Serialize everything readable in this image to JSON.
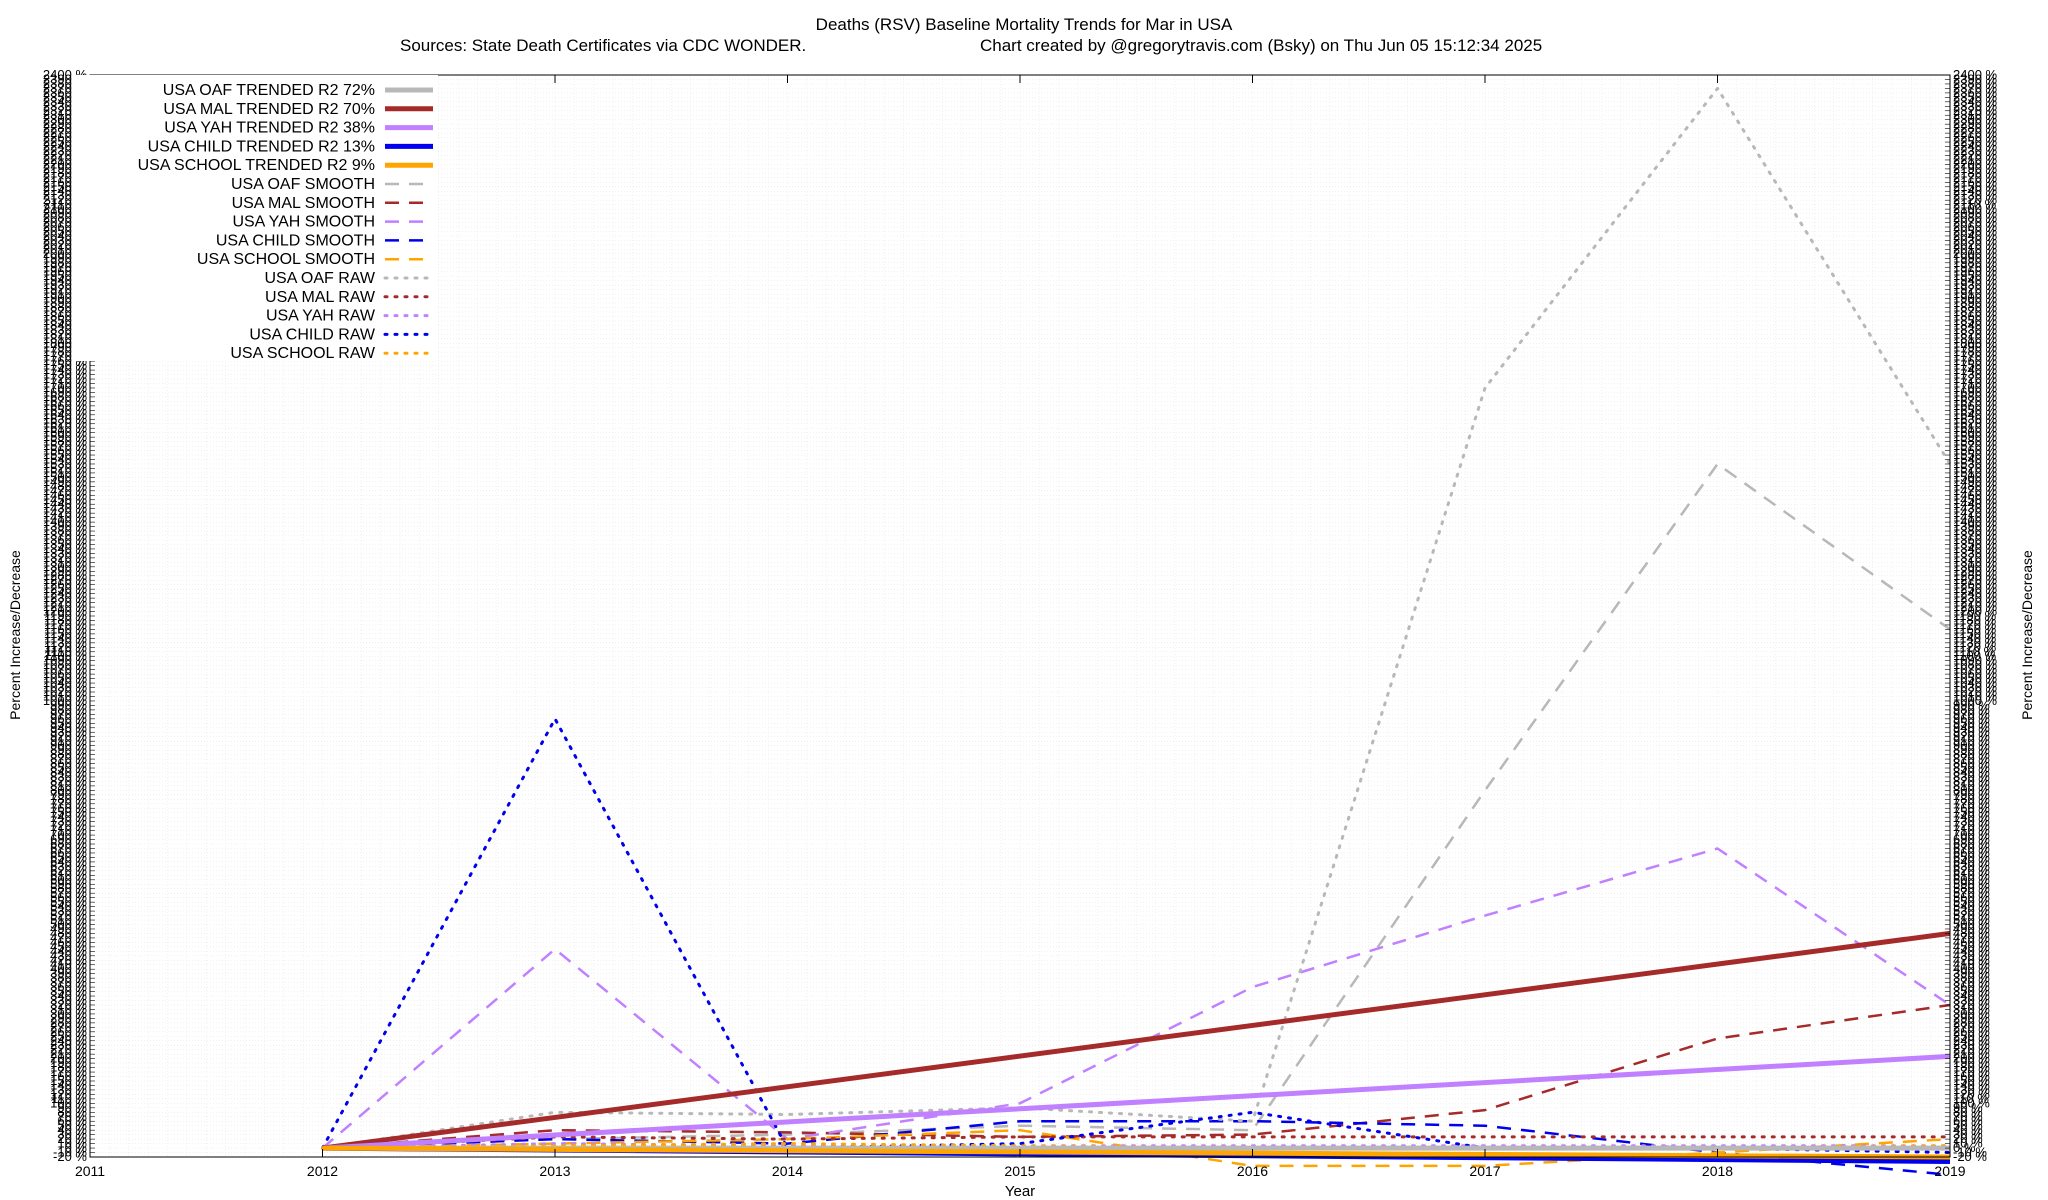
{
  "title_line1": "Deaths (RSV)  Baseline Mortality Trends for Mar in USA",
  "title_line2_left": "Sources: State Death Certificates via CDC WONDER.",
  "title_line2_right": "Chart created by @gregorytravis.com (Bsky) on Thu Jun 05 15:12:34 2025",
  "chart_data": {
    "type": "line",
    "xlabel": "Year",
    "ylabel": "Percent Increase/Decrease",
    "y2label": "Percent Increase/Decrease",
    "xlim": [
      2011,
      2019
    ],
    "ylim": [
      -20,
      2400
    ],
    "x_ticks": [
      "2011",
      "2012",
      "2013",
      "2014",
      "2015",
      "2016",
      "2017",
      "2018",
      "2019"
    ],
    "y_tick_step": 10,
    "y_tick_suffix": " %",
    "grid": true,
    "legend_position": "top-left",
    "series": [
      {
        "name": "USA OAF TRENDED R2  72%",
        "style": "trended",
        "color": "#b8b8b8",
        "x": [
          2012,
          2019
        ],
        "y": [
          0,
          0
        ]
      },
      {
        "name": "USA MAL TRENDED R2  70%",
        "style": "trended",
        "color": "#a52a2a",
        "x": [
          2012,
          2019
        ],
        "y": [
          0,
          480
        ]
      },
      {
        "name": "USA YAH TRENDED R2  38%",
        "style": "trended",
        "color": "#c080ff",
        "x": [
          2012,
          2019
        ],
        "y": [
          0,
          205
        ]
      },
      {
        "name": "USA CHILD TRENDED R2  13%",
        "style": "trended",
        "color": "#0000ee",
        "x": [
          2012,
          2019
        ],
        "y": [
          0,
          -30
        ]
      },
      {
        "name": "USA SCHOOL TRENDED R2  9%",
        "style": "trended",
        "color": "#ffa500",
        "x": [
          2012,
          2019
        ],
        "y": [
          0,
          -20
        ]
      },
      {
        "name": "USA OAF SMOOTH",
        "style": "smooth",
        "color": "#b8b8b8",
        "x": [
          2012,
          2013,
          2014,
          2015,
          2016,
          2017,
          2018,
          2019
        ],
        "y": [
          0,
          20,
          30,
          50,
          40,
          800,
          1530,
          1160
        ]
      },
      {
        "name": "USA MAL SMOOTH",
        "style": "smooth",
        "color": "#a52a2a",
        "x": [
          2012,
          2013,
          2014,
          2015,
          2016,
          2017,
          2018,
          2019
        ],
        "y": [
          0,
          40,
          35,
          25,
          30,
          85,
          245,
          320
        ]
      },
      {
        "name": "USA YAH SMOOTH",
        "style": "smooth",
        "color": "#c080ff",
        "x": [
          2012,
          2013,
          2014,
          2015,
          2016,
          2017,
          2018,
          2019
        ],
        "y": [
          0,
          445,
          20,
          100,
          360,
          520,
          670,
          320
        ]
      },
      {
        "name": "USA CHILD SMOOTH",
        "style": "smooth",
        "color": "#0000ee",
        "x": [
          2012,
          2013,
          2014,
          2015,
          2016,
          2017,
          2018,
          2019
        ],
        "y": [
          0,
          20,
          10,
          60,
          60,
          50,
          -10,
          -60
        ]
      },
      {
        "name": "USA SCHOOL SMOOTH",
        "style": "smooth",
        "color": "#ffa500",
        "x": [
          2012,
          2013,
          2014,
          2015,
          2016,
          2017,
          2018,
          2019
        ],
        "y": [
          0,
          10,
          20,
          40,
          -40,
          -40,
          -10,
          20
        ]
      },
      {
        "name": "USA OAF RAW",
        "style": "raw",
        "color": "#b8b8b8",
        "x": [
          2012,
          2013,
          2014,
          2015,
          2016,
          2017,
          2018,
          2019
        ],
        "y": [
          0,
          80,
          75,
          90,
          60,
          1700,
          2370,
          1530
        ]
      },
      {
        "name": "USA MAL RAW",
        "style": "raw",
        "color": "#a52a2a",
        "x": [
          2012,
          2013,
          2014,
          2015,
          2016,
          2017,
          2018,
          2019
        ],
        "y": [
          0,
          25,
          20,
          25,
          25,
          25,
          25,
          25
        ]
      },
      {
        "name": "USA YAH RAW",
        "style": "raw",
        "color": "#c080ff",
        "x": [
          2012,
          2013,
          2014,
          2015,
          2016,
          2017,
          2018,
          2019
        ],
        "y": [
          0,
          10,
          5,
          5,
          5,
          5,
          5,
          5
        ]
      },
      {
        "name": "USA CHILD RAW",
        "style": "raw",
        "color": "#0000ee",
        "x": [
          2012,
          2013,
          2014,
          2015,
          2016,
          2017,
          2018,
          2019
        ],
        "y": [
          0,
          960,
          0,
          10,
          80,
          0,
          0,
          -10
        ]
      },
      {
        "name": "USA SCHOOL RAW",
        "style": "raw",
        "color": "#ffa500",
        "x": [
          2012,
          2013,
          2014,
          2015,
          2016,
          2017,
          2018,
          2019
        ],
        "y": [
          0,
          5,
          10,
          5,
          0,
          0,
          0,
          5
        ]
      }
    ]
  }
}
